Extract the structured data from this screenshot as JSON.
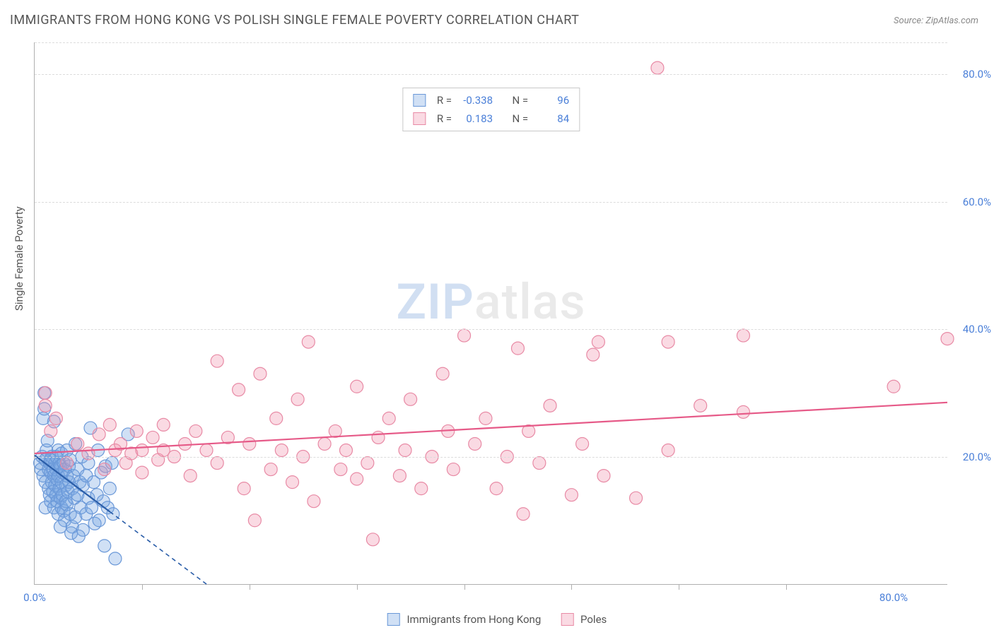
{
  "title": "IMMIGRANTS FROM HONG KONG VS POLISH SINGLE FEMALE POVERTY CORRELATION CHART",
  "source": "Source: ZipAtlas.com",
  "watermark_zip": "ZIP",
  "watermark_atlas": "atlas",
  "ylabel": "Single Female Poverty",
  "chart": {
    "type": "scatter",
    "xlim": [
      0,
      85
    ],
    "ylim": [
      0,
      85
    ],
    "x_ticks": [
      0,
      80
    ],
    "x_tick_labels": [
      "0.0%",
      "80.0%"
    ],
    "y_ticks": [
      20,
      40,
      60,
      80
    ],
    "y_tick_labels": [
      "20.0%",
      "40.0%",
      "60.0%",
      "80.0%"
    ],
    "minor_vticks": [
      10,
      20,
      30,
      40,
      50,
      60,
      70
    ],
    "background": "#ffffff",
    "grid_color": "#dcdcdc",
    "axis_color": "#b0b0b0",
    "tick_label_color": "#4a7fd8",
    "series": [
      {
        "name": "Immigrants from Hong Kong",
        "fill": "rgba(120,165,225,0.35)",
        "stroke": "#6a98d8",
        "line_color": "#2a5da8",
        "r_label": "R =",
        "r_value": "-0.338",
        "n_label": "N =",
        "n_value": "96",
        "trend": {
          "x1": 0,
          "y1": 20.2,
          "x2": 16,
          "y2": 0,
          "dashed_from_x": 7
        },
        "r_marker": 9,
        "points": [
          [
            0.5,
            19
          ],
          [
            0.6,
            18
          ],
          [
            0.7,
            20
          ],
          [
            0.8,
            17
          ],
          [
            0.8,
            26
          ],
          [
            0.9,
            27.5
          ],
          [
            0.9,
            30
          ],
          [
            1,
            19.5
          ],
          [
            1,
            16
          ],
          [
            1,
            12
          ],
          [
            1.1,
            21
          ],
          [
            1.2,
            22.5
          ],
          [
            1.3,
            18
          ],
          [
            1.3,
            15
          ],
          [
            1.4,
            14
          ],
          [
            1.4,
            19
          ],
          [
            1.5,
            19.5
          ],
          [
            1.5,
            17.5
          ],
          [
            1.5,
            13
          ],
          [
            1.6,
            20
          ],
          [
            1.6,
            16
          ],
          [
            1.7,
            18
          ],
          [
            1.7,
            14.5
          ],
          [
            1.8,
            25.5
          ],
          [
            1.8,
            17
          ],
          [
            1.8,
            12
          ],
          [
            1.9,
            19
          ],
          [
            1.9,
            15.5
          ],
          [
            2,
            20
          ],
          [
            2,
            18
          ],
          [
            2,
            14
          ],
          [
            2.1,
            16.5
          ],
          [
            2.1,
            13
          ],
          [
            2.2,
            21
          ],
          [
            2.2,
            17
          ],
          [
            2.2,
            11
          ],
          [
            2.3,
            19
          ],
          [
            2.3,
            15
          ],
          [
            2.4,
            18.5
          ],
          [
            2.4,
            13.5
          ],
          [
            2.5,
            20.5
          ],
          [
            2.5,
            16
          ],
          [
            2.5,
            12
          ],
          [
            2.6,
            17.5
          ],
          [
            2.6,
            14
          ],
          [
            2.7,
            19
          ],
          [
            2.7,
            11.5
          ],
          [
            2.8,
            10
          ],
          [
            2.8,
            18
          ],
          [
            2.9,
            15.5
          ],
          [
            2.9,
            13
          ],
          [
            3,
            21
          ],
          [
            3,
            17
          ],
          [
            3,
            12.5
          ],
          [
            3.1,
            14.5
          ],
          [
            3.2,
            16
          ],
          [
            3.2,
            18.5
          ],
          [
            3.3,
            11
          ],
          [
            3.3,
            19.5
          ],
          [
            3.5,
            9
          ],
          [
            3.5,
            15
          ],
          [
            3.6,
            17
          ],
          [
            3.7,
            13.5
          ],
          [
            3.8,
            22
          ],
          [
            3.8,
            10.5
          ],
          [
            4,
            18
          ],
          [
            4,
            14
          ],
          [
            4.2,
            16
          ],
          [
            4.3,
            12
          ],
          [
            4.4,
            20
          ],
          [
            4.5,
            8.5
          ],
          [
            4.5,
            15.5
          ],
          [
            4.8,
            17
          ],
          [
            4.8,
            11
          ],
          [
            5,
            19
          ],
          [
            5,
            13.5
          ],
          [
            5.2,
            24.5
          ],
          [
            5.3,
            12
          ],
          [
            5.5,
            16
          ],
          [
            5.6,
            9.5
          ],
          [
            5.8,
            14
          ],
          [
            5.9,
            21
          ],
          [
            6,
            10
          ],
          [
            6.2,
            17.5
          ],
          [
            6.4,
            13
          ],
          [
            6.5,
            6
          ],
          [
            6.6,
            18.5
          ],
          [
            6.8,
            12
          ],
          [
            7,
            15
          ],
          [
            7.2,
            19
          ],
          [
            7.3,
            11
          ],
          [
            7.5,
            4
          ],
          [
            8.7,
            23.5
          ],
          [
            2.4,
            9
          ],
          [
            3.4,
            8
          ],
          [
            4.1,
            7.5
          ]
        ]
      },
      {
        "name": "Poles",
        "fill": "rgba(240,150,175,0.35)",
        "stroke": "#e88aa5",
        "line_color": "#e65a88",
        "r_label": "R =",
        "r_value": "0.183",
        "n_label": "N =",
        "n_value": "84",
        "trend": {
          "x1": 0,
          "y1": 20.5,
          "x2": 85,
          "y2": 28.5
        },
        "r_marker": 9,
        "points": [
          [
            1,
            30
          ],
          [
            1,
            28
          ],
          [
            1.5,
            24
          ],
          [
            2,
            26
          ],
          [
            3,
            19
          ],
          [
            4,
            22
          ],
          [
            5,
            20.5
          ],
          [
            6,
            23.5
          ],
          [
            6.5,
            18
          ],
          [
            7,
            25
          ],
          [
            7.5,
            21
          ],
          [
            8,
            22
          ],
          [
            8.5,
            19
          ],
          [
            9,
            20.5
          ],
          [
            9.5,
            24
          ],
          [
            10,
            21
          ],
          [
            10,
            17.5
          ],
          [
            11,
            23
          ],
          [
            11.5,
            19.5
          ],
          [
            12,
            21
          ],
          [
            12,
            25
          ],
          [
            13,
            20
          ],
          [
            14,
            22
          ],
          [
            14.5,
            17
          ],
          [
            15,
            24
          ],
          [
            16,
            21
          ],
          [
            17,
            35
          ],
          [
            17,
            19
          ],
          [
            18,
            23
          ],
          [
            19,
            30.5
          ],
          [
            19.5,
            15
          ],
          [
            20,
            22
          ],
          [
            20.5,
            10
          ],
          [
            21,
            33
          ],
          [
            22,
            18
          ],
          [
            22.5,
            26
          ],
          [
            23,
            21
          ],
          [
            24,
            16
          ],
          [
            24.5,
            29
          ],
          [
            25,
            20
          ],
          [
            25.5,
            38
          ],
          [
            26,
            13
          ],
          [
            27,
            22
          ],
          [
            28,
            24
          ],
          [
            28.5,
            18
          ],
          [
            29,
            21
          ],
          [
            30,
            16.5
          ],
          [
            30,
            31
          ],
          [
            31,
            19
          ],
          [
            31.5,
            7
          ],
          [
            32,
            23
          ],
          [
            33,
            26
          ],
          [
            34,
            17
          ],
          [
            34.5,
            21
          ],
          [
            35,
            29
          ],
          [
            36,
            15
          ],
          [
            37,
            20
          ],
          [
            38,
            33
          ],
          [
            38.5,
            24
          ],
          [
            39,
            18
          ],
          [
            40,
            39
          ],
          [
            41,
            22
          ],
          [
            42,
            26
          ],
          [
            43,
            15
          ],
          [
            44,
            20
          ],
          [
            45,
            37
          ],
          [
            45.5,
            11
          ],
          [
            46,
            24
          ],
          [
            47,
            19
          ],
          [
            48,
            28
          ],
          [
            50,
            14
          ],
          [
            51,
            22
          ],
          [
            52,
            36
          ],
          [
            52.5,
            38
          ],
          [
            53,
            17
          ],
          [
            56,
            13.5
          ],
          [
            58,
            81
          ],
          [
            59,
            21
          ],
          [
            59,
            38
          ],
          [
            62,
            28
          ],
          [
            66,
            27
          ],
          [
            66,
            39
          ],
          [
            80,
            31
          ],
          [
            85,
            38.5
          ]
        ]
      }
    ]
  },
  "bottom_legend": [
    {
      "label": "Immigrants from Hong Kong",
      "fill": "rgba(120,165,225,0.35)",
      "stroke": "#6a98d8"
    },
    {
      "label": "Poles",
      "fill": "rgba(240,150,175,0.35)",
      "stroke": "#e88aa5"
    }
  ]
}
